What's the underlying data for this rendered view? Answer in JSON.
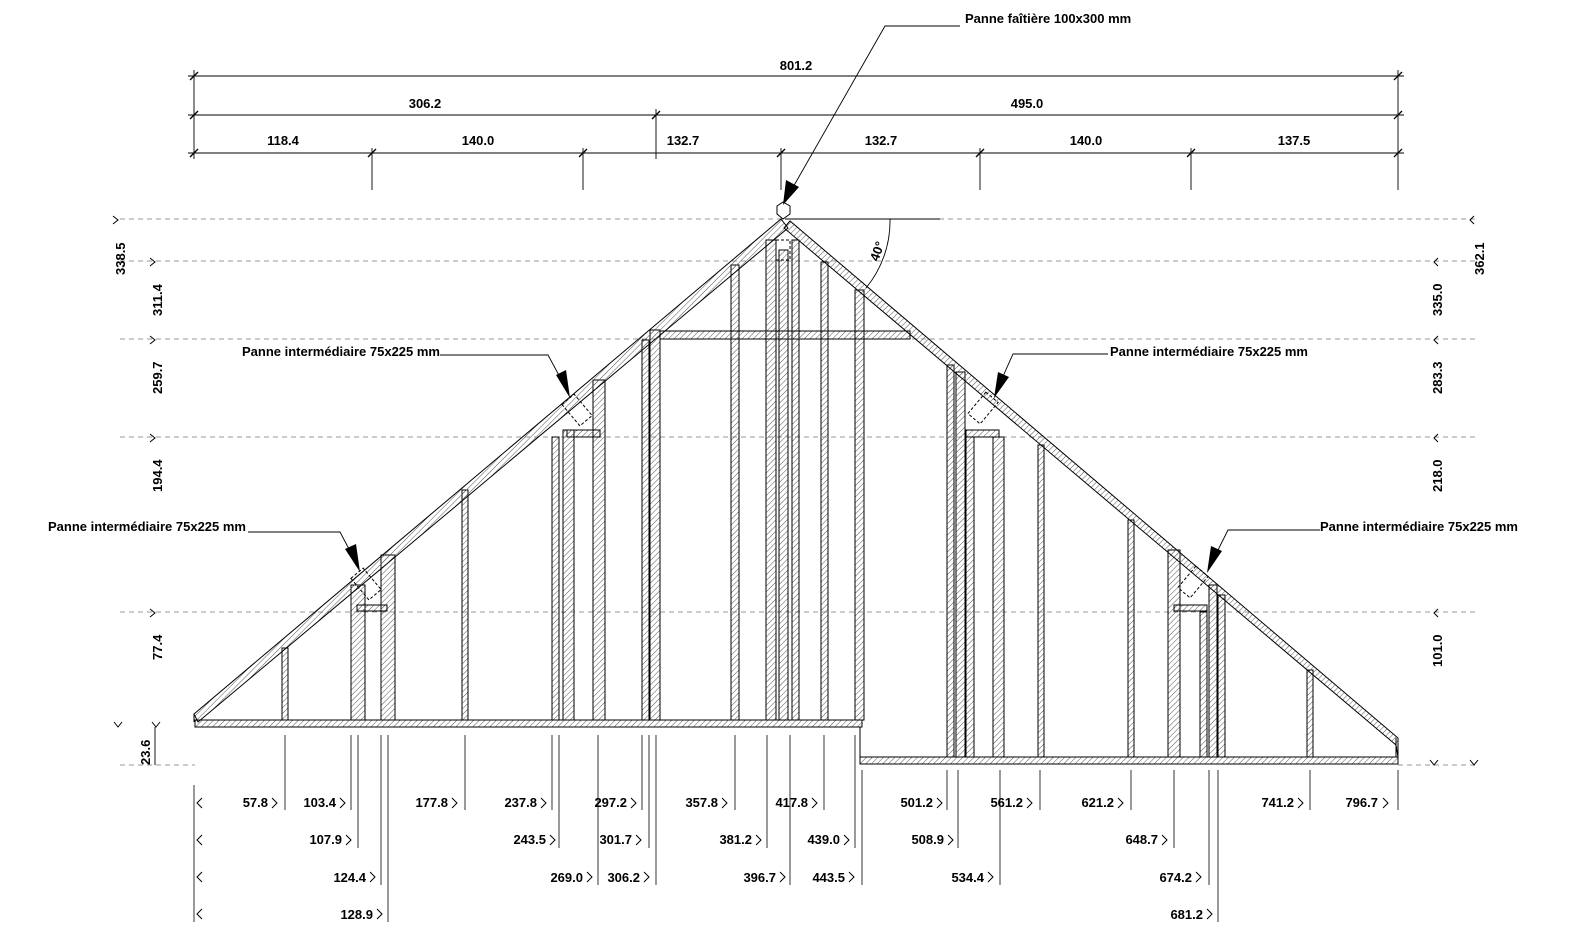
{
  "callouts": {
    "ridge_purlin": "Panne faîtière 100x300 mm",
    "purlin_upper_left": "Panne intermédiaire 75x225 mm",
    "purlin_upper_right": "Panne intermédiaire 75x225 mm",
    "purlin_lower_left": "Panne intermédiaire 75x225 mm",
    "purlin_lower_right": "Panne intermédiaire 75x225 mm"
  },
  "roof_angle": "40°",
  "top_dims": {
    "overall": "801.2",
    "row2": [
      "306.2",
      "495.0"
    ],
    "row3": [
      "118.4",
      "140.0",
      "132.7",
      "132.7",
      "140.0",
      "137.5"
    ]
  },
  "left_heights": [
    "338.5",
    "311.4",
    "259.7",
    "194.4",
    "77.4",
    "23.6"
  ],
  "right_heights": [
    "362.1",
    "335.0",
    "283.3",
    "218.0",
    "101.0"
  ],
  "bottom_dims": {
    "row1": [
      "57.8",
      "103.4",
      "177.8",
      "237.8",
      "297.2",
      "357.8",
      "417.8",
      "501.2",
      "561.2",
      "621.2",
      "741.2",
      "796.7"
    ],
    "row2": [
      "107.9",
      "243.5",
      "301.7",
      "381.2",
      "439.0",
      "508.9",
      "648.7"
    ],
    "row3": [
      "124.4",
      "269.0",
      "306.2",
      "396.7",
      "443.5",
      "534.4",
      "674.2"
    ],
    "row4": [
      "128.9",
      "681.2"
    ]
  }
}
